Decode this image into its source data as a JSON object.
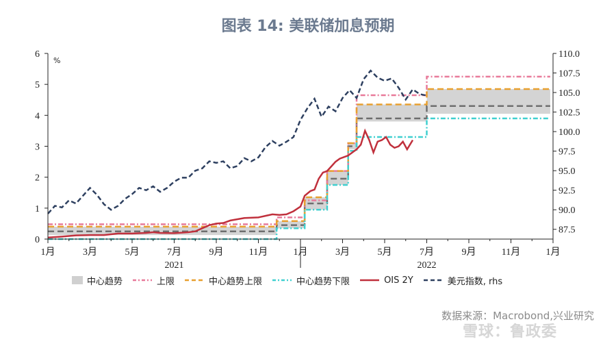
{
  "title": "图表 14:  美联储加息预期",
  "source": "数据来源：Macrobond,兴业研究",
  "watermark": "雪球：鲁政委",
  "chart_data": {
    "type": "line",
    "unit_left": "%",
    "x_ticks": [
      "1月",
      "3月",
      "5月",
      "7月",
      "9月",
      "11月",
      "1月",
      "3月",
      "5月",
      "7月",
      "9月",
      "11月",
      "1月"
    ],
    "x_years": [
      "2021",
      "2022"
    ],
    "y_left": {
      "min": 0,
      "max": 6,
      "ticks": [
        "0",
        "1",
        "2",
        "3",
        "4",
        "5",
        "6"
      ]
    },
    "y_right": {
      "min": 86.25,
      "max": 110.0,
      "ticks": [
        "87.5",
        "90.0",
        "92.5",
        "95.0",
        "97.5",
        "100.0",
        "102.5",
        "105.0",
        "107.5",
        "110.0"
      ]
    },
    "legend": [
      {
        "label": "中心趋势",
        "color": "#d0d0d0",
        "style": "fill"
      },
      {
        "label": "上限",
        "color": "#e87a9a",
        "style": "dashdot"
      },
      {
        "label": "中心趋势上限",
        "color": "#e8a030",
        "style": "dash"
      },
      {
        "label": "中心趋势下限",
        "color": "#40d0d0",
        "style": "dashdot"
      },
      {
        "label": "OIS 2Y",
        "color": "#c0303c",
        "style": "solid"
      },
      {
        "label": "美元指数, rhs",
        "color": "#2e4060",
        "style": "dash"
      }
    ],
    "policy_steps": [
      {
        "t0": 0.0,
        "t1": 16.3,
        "upper": 0.48,
        "center_hi": 0.4,
        "center_lo": 0.13,
        "center": 0.25,
        "lower": 0.0
      },
      {
        "t0": 16.3,
        "t1": 18.3,
        "upper": 0.7,
        "center_hi": 0.58,
        "center_lo": 0.35,
        "center": 0.45,
        "lower": 0.35
      },
      {
        "t0": 18.3,
        "t1": 19.9,
        "upper": 1.25,
        "center_hi": 1.35,
        "center_lo": 0.95,
        "center": 1.15,
        "lower": 0.95
      },
      {
        "t0": 19.9,
        "t1": 21.4,
        "upper": 2.2,
        "center_hi": 2.2,
        "center_lo": 1.75,
        "center": 1.95,
        "lower": 1.75
      },
      {
        "t0": 21.4,
        "t1": 22.0,
        "upper": 3.1,
        "center_hi": 3.1,
        "center_lo": 2.9,
        "center": 3.0,
        "lower": 2.85
      },
      {
        "t0": 22.0,
        "t1": 27.0,
        "upper": 4.65,
        "center_hi": 4.35,
        "center_lo": 3.8,
        "center": 3.9,
        "lower": 3.3
      },
      {
        "t0": 27.0,
        "t1": 35.8,
        "upper": 5.25,
        "center_hi": 4.85,
        "center_lo": 4.05,
        "center": 4.3,
        "lower": 3.9
      }
    ],
    "ois_2y": {
      "x": [
        0,
        1,
        2,
        3,
        4,
        5,
        6,
        7,
        7.5,
        8,
        9,
        10,
        10.5,
        11,
        11.5,
        12,
        12.5,
        13,
        14,
        15,
        15.5,
        16,
        16.5,
        17,
        17.5,
        18,
        18.3,
        18.7,
        19,
        19.3,
        19.6,
        19.9,
        20.2,
        20.5,
        20.8,
        21.1,
        21.4,
        21.7,
        22.0,
        22.3,
        22.6,
        22.9,
        23.2,
        23.5,
        23.8,
        24.1,
        24.4,
        24.7,
        25.0,
        25.3,
        25.6,
        26.0
      ],
      "y": [
        0.05,
        0.08,
        0.12,
        0.13,
        0.13,
        0.18,
        0.18,
        0.2,
        0.22,
        0.2,
        0.19,
        0.22,
        0.25,
        0.35,
        0.45,
        0.5,
        0.52,
        0.6,
        0.68,
        0.7,
        0.75,
        0.8,
        0.78,
        0.8,
        0.9,
        1.05,
        1.4,
        1.55,
        1.6,
        1.95,
        2.15,
        2.2,
        2.35,
        2.5,
        2.6,
        2.65,
        2.7,
        2.8,
        2.9,
        3.05,
        3.5,
        3.2,
        2.8,
        3.15,
        3.2,
        3.3,
        3.05,
        2.95,
        3.0,
        3.15,
        2.9,
        3.2
      ]
    },
    "dxy": {
      "x": [
        0,
        0.5,
        1,
        1.5,
        2,
        2.5,
        3,
        3.5,
        4,
        4.5,
        5,
        5.5,
        6,
        6.5,
        7,
        7.5,
        8,
        8.5,
        9,
        9.5,
        10,
        10.5,
        11,
        11.5,
        12,
        12.5,
        13,
        13.5,
        14,
        14.5,
        15,
        15.5,
        16,
        16.5,
        17,
        17.5,
        18,
        18.5,
        19,
        19.5,
        20,
        20.5,
        21,
        21.5,
        22,
        22.5,
        23,
        23.5,
        24,
        24.5,
        25,
        25.5,
        26,
        26.5,
        27
      ],
      "y": [
        89.5,
        90.5,
        90.3,
        91.2,
        90.8,
        91.8,
        92.8,
        91.9,
        90.7,
        90.0,
        90.5,
        91.4,
        92.0,
        92.8,
        92.5,
        93.0,
        92.3,
        92.8,
        93.6,
        94.1,
        94.1,
        95.0,
        95.3,
        96.2,
        96.0,
        96.2,
        95.3,
        95.6,
        96.6,
        96.2,
        96.7,
        98.0,
        98.8,
        98.2,
        98.7,
        99.3,
        101.5,
        103.0,
        104.2,
        101.9,
        103.2,
        102.6,
        104.3,
        105.3,
        104.3,
        106.7,
        107.8,
        106.9,
        106.5,
        106.8,
        105.6,
        104.1,
        105.4,
        104.8,
        104.6
      ]
    }
  }
}
